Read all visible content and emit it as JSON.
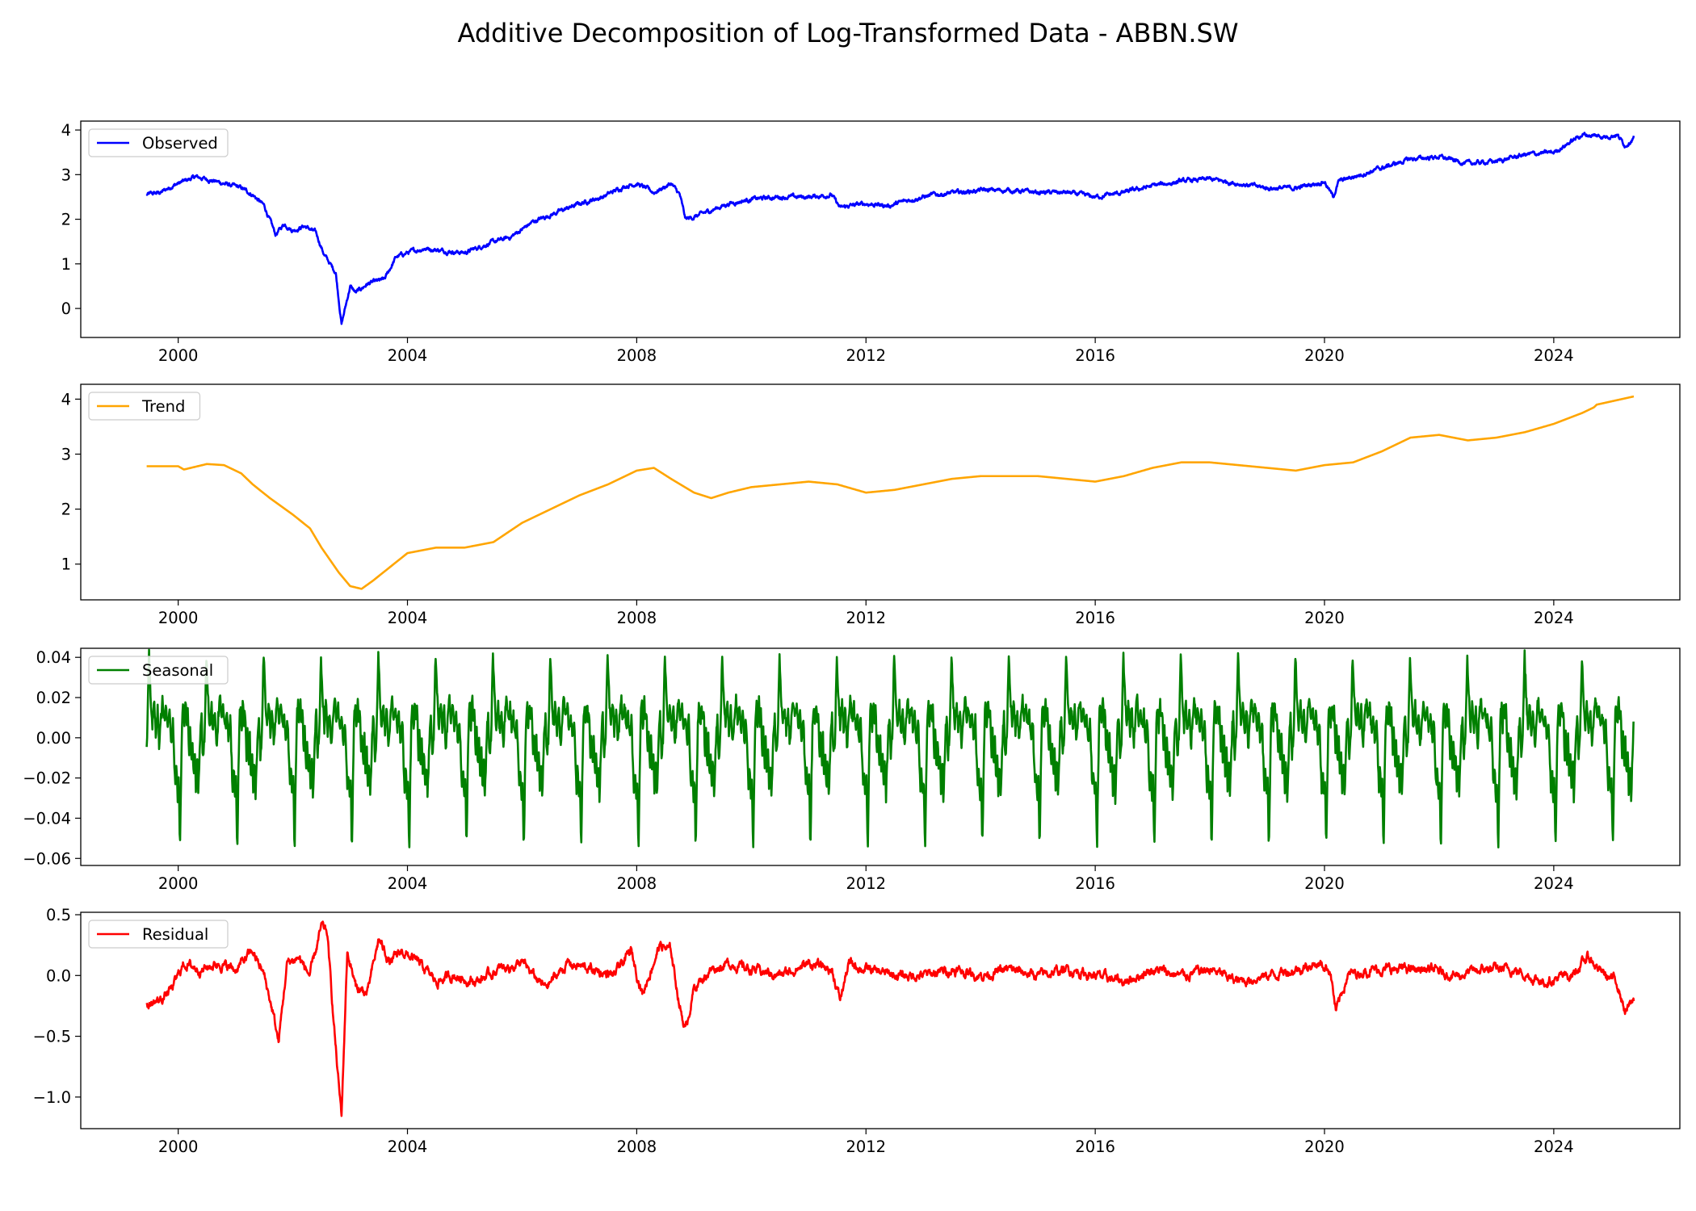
{
  "figure": {
    "title": "Additive Decomposition of Log-Transformed Data - ABBN.SW"
  },
  "chart_data": [
    {
      "type": "line",
      "name": "observed",
      "legend": "Observed",
      "color": "#0000ff",
      "legend_position": "upper-left",
      "xlim": [
        1998.3,
        2026.2
      ],
      "ylim": [
        -0.65,
        4.2
      ],
      "x_ticks": [
        2000,
        2004,
        2008,
        2012,
        2016,
        2020,
        2024
      ],
      "x_tick_labels": [
        "2000",
        "2004",
        "2008",
        "2012",
        "2016",
        "2020",
        "2024"
      ],
      "y_ticks": [
        0,
        1,
        2,
        3,
        4
      ],
      "y_tick_labels": [
        "0",
        "1",
        "2",
        "3",
        "4"
      ],
      "noise": 0.06,
      "x": [
        1999.45,
        1999.7,
        1999.9,
        2000.1,
        2000.3,
        2000.5,
        2000.8,
        2001.1,
        2001.3,
        2001.5,
        2001.7,
        2001.85,
        2002.0,
        2002.2,
        2002.4,
        2002.55,
        2002.75,
        2002.85,
        2003.0,
        2003.1,
        2003.3,
        2003.6,
        2003.8,
        2004.0,
        2004.3,
        2004.6,
        2005.0,
        2005.4,
        2005.8,
        2006.2,
        2006.6,
        2007.0,
        2007.4,
        2007.8,
        2008.0,
        2008.3,
        2008.6,
        2008.75,
        2008.85,
        2009.0,
        2009.3,
        2009.6,
        2010.0,
        2010.5,
        2011.0,
        2011.4,
        2011.55,
        2011.7,
        2012.0,
        2012.4,
        2012.8,
        2013.2,
        2013.6,
        2014.0,
        2014.5,
        2015.0,
        2015.5,
        2016.0,
        2016.5,
        2017.0,
        2017.5,
        2018.0,
        2018.5,
        2019.0,
        2019.5,
        2020.0,
        2020.15,
        2020.25,
        2020.5,
        2021.0,
        2021.5,
        2022.0,
        2022.5,
        2023.0,
        2023.5,
        2024.0,
        2024.5,
        2024.9,
        2025.1,
        2025.25,
        2025.4
      ],
      "y": [
        2.55,
        2.6,
        2.75,
        2.85,
        2.95,
        2.9,
        2.8,
        2.7,
        2.55,
        2.3,
        1.65,
        1.9,
        1.75,
        1.85,
        1.7,
        1.2,
        0.8,
        -0.35,
        0.5,
        0.35,
        0.55,
        0.65,
        1.15,
        1.25,
        1.35,
        1.3,
        1.25,
        1.45,
        1.6,
        1.95,
        2.15,
        2.35,
        2.5,
        2.75,
        2.8,
        2.6,
        2.8,
        2.55,
        2.0,
        2.05,
        2.2,
        2.35,
        2.45,
        2.5,
        2.5,
        2.55,
        2.25,
        2.3,
        2.35,
        2.3,
        2.45,
        2.55,
        2.6,
        2.65,
        2.65,
        2.6,
        2.6,
        2.5,
        2.6,
        2.75,
        2.85,
        2.9,
        2.8,
        2.7,
        2.7,
        2.85,
        2.5,
        2.85,
        2.95,
        3.15,
        3.35,
        3.4,
        3.25,
        3.3,
        3.45,
        3.5,
        3.9,
        3.85,
        3.9,
        3.65,
        3.85
      ]
    },
    {
      "type": "line",
      "name": "trend",
      "legend": "Trend",
      "color": "#ffa500",
      "legend_position": "upper-left",
      "xlim": [
        1998.3,
        2026.2
      ],
      "ylim": [
        0.35,
        4.27
      ],
      "x_ticks": [
        2000,
        2004,
        2008,
        2012,
        2016,
        2020,
        2024
      ],
      "x_tick_labels": [
        "2000",
        "2004",
        "2008",
        "2012",
        "2016",
        "2020",
        "2024"
      ],
      "y_ticks": [
        1,
        2,
        3,
        4
      ],
      "y_tick_labels": [
        "1",
        "2",
        "3",
        "4"
      ],
      "noise": 0,
      "x": [
        1999.45,
        1999.9,
        2000.0,
        2000.1,
        2000.5,
        2000.8,
        2001.1,
        2001.3,
        2001.6,
        2002.0,
        2002.3,
        2002.5,
        2002.8,
        2003.0,
        2003.2,
        2003.4,
        2003.7,
        2004.0,
        2004.5,
        2005.0,
        2005.5,
        2006.0,
        2006.5,
        2007.0,
        2007.5,
        2008.0,
        2008.3,
        2008.6,
        2009.0,
        2009.3,
        2009.6,
        2010.0,
        2010.5,
        2011.0,
        2011.5,
        2012.0,
        2012.5,
        2013.0,
        2013.5,
        2014.0,
        2014.5,
        2015.0,
        2015.5,
        2016.0,
        2016.5,
        2017.0,
        2017.5,
        2018.0,
        2018.5,
        2019.0,
        2019.5,
        2020.0,
        2020.5,
        2021.0,
        2021.5,
        2022.0,
        2022.5,
        2023.0,
        2023.5,
        2024.0,
        2024.5,
        2024.7,
        2024.75,
        2025.4
      ],
      "y": [
        2.78,
        2.78,
        2.78,
        2.72,
        2.82,
        2.8,
        2.65,
        2.45,
        2.2,
        1.9,
        1.65,
        1.3,
        0.85,
        0.6,
        0.55,
        0.7,
        0.95,
        1.2,
        1.3,
        1.3,
        1.4,
        1.75,
        2.0,
        2.25,
        2.45,
        2.7,
        2.75,
        2.55,
        2.3,
        2.2,
        2.3,
        2.4,
        2.45,
        2.5,
        2.45,
        2.3,
        2.35,
        2.45,
        2.55,
        2.6,
        2.6,
        2.6,
        2.55,
        2.5,
        2.6,
        2.75,
        2.85,
        2.85,
        2.8,
        2.75,
        2.7,
        2.8,
        2.85,
        3.05,
        3.3,
        3.35,
        3.25,
        3.3,
        3.4,
        3.55,
        3.75,
        3.85,
        3.9,
        4.05
      ]
    },
    {
      "type": "line",
      "name": "seasonal",
      "legend": "Seasonal",
      "color": "#008000",
      "legend_position": "upper-left",
      "xlim": [
        1998.3,
        2026.2
      ],
      "ylim": [
        -0.0635,
        0.0445
      ],
      "x_ticks": [
        2000,
        2004,
        2008,
        2012,
        2016,
        2020,
        2024
      ],
      "x_tick_labels": [
        "2000",
        "2004",
        "2008",
        "2012",
        "2016",
        "2020",
        "2024"
      ],
      "y_ticks": [
        -0.06,
        -0.04,
        -0.02,
        0.0,
        0.02,
        0.04
      ],
      "y_tick_labels": [
        "−0.06",
        "−0.04",
        "−0.02",
        "0.00",
        "0.02",
        "0.04"
      ],
      "period_years": 1,
      "start": 1999.45,
      "end": 2025.4,
      "cycle_phase": [
        0.0,
        0.03,
        0.06,
        0.09,
        0.12,
        0.15,
        0.18,
        0.21,
        0.24,
        0.27,
        0.3,
        0.33,
        0.36,
        0.39,
        0.42,
        0.45,
        0.48,
        0.5,
        0.52,
        0.54,
        0.56,
        0.58,
        0.6,
        0.62,
        0.64,
        0.66,
        0.68,
        0.7,
        0.72,
        0.74,
        0.76,
        0.78,
        0.8,
        0.82,
        0.84,
        0.86,
        0.88,
        0.9,
        0.92,
        0.94,
        0.96,
        0.98,
        1.0
      ],
      "cycle_values": [
        -0.01,
        0.0,
        0.042,
        0.02,
        0.005,
        0.018,
        0.002,
        0.015,
        -0.005,
        0.01,
        0.02,
        0.008,
        0.016,
        0.004,
        0.012,
        -0.002,
        0.01,
        -0.01,
        -0.025,
        -0.015,
        -0.03,
        -0.02,
        -0.058,
        -0.02,
        0.01,
        0.018,
        0.004,
        0.02,
        0.008,
        0.015,
        -0.01,
        0.005,
        -0.015,
        0.0,
        -0.02,
        -0.005,
        -0.028,
        -0.01,
        -0.03,
        -0.012,
        0.005,
        0.012,
        -0.01
      ]
    },
    {
      "type": "line",
      "name": "residual",
      "legend": "Residual",
      "color": "#ff0000",
      "legend_position": "upper-left",
      "xlim": [
        1998.3,
        2026.2
      ],
      "ylim": [
        -1.26,
        0.52
      ],
      "x_ticks": [
        2000,
        2004,
        2008,
        2012,
        2016,
        2020,
        2024
      ],
      "x_tick_labels": [
        "2000",
        "2004",
        "2008",
        "2012",
        "2016",
        "2020",
        "2024"
      ],
      "y_ticks": [
        -1.0,
        -0.5,
        0.0,
        0.5
      ],
      "y_tick_labels": [
        "−1.0",
        "−0.5",
        "0.0",
        "0.5"
      ],
      "noise": 0.05,
      "x": [
        1999.45,
        1999.7,
        1999.9,
        2000.1,
        2000.4,
        2000.7,
        2001.0,
        2001.3,
        2001.5,
        2001.65,
        2001.75,
        2001.9,
        2002.1,
        2002.3,
        2002.5,
        2002.6,
        2002.7,
        2002.8,
        2002.85,
        2002.95,
        2003.1,
        2003.3,
        2003.5,
        2003.7,
        2003.9,
        2004.2,
        2004.5,
        2004.8,
        2005.2,
        2005.6,
        2006.0,
        2006.4,
        2006.8,
        2007.2,
        2007.6,
        2007.9,
        2008.1,
        2008.4,
        2008.6,
        2008.75,
        2008.85,
        2009.0,
        2009.3,
        2009.6,
        2010.0,
        2010.5,
        2011.0,
        2011.4,
        2011.55,
        2011.7,
        2012.0,
        2012.5,
        2013.0,
        2013.5,
        2014.0,
        2014.5,
        2015.0,
        2015.5,
        2016.0,
        2016.5,
        2017.0,
        2017.5,
        2018.0,
        2018.5,
        2019.0,
        2019.5,
        2019.9,
        2020.1,
        2020.2,
        2020.4,
        2020.8,
        2021.3,
        2021.8,
        2022.3,
        2022.8,
        2023.3,
        2023.8,
        2024.3,
        2024.6,
        2024.9,
        2025.1,
        2025.25,
        2025.4
      ],
      "y": [
        -0.25,
        -0.2,
        -0.1,
        0.1,
        0.05,
        0.1,
        0.05,
        0.2,
        0.0,
        -0.3,
        -0.55,
        0.1,
        0.15,
        0.0,
        0.4,
        0.35,
        -0.3,
        -0.9,
        -1.15,
        0.2,
        -0.1,
        -0.15,
        0.3,
        0.1,
        0.2,
        0.1,
        -0.05,
        0.0,
        -0.05,
        0.05,
        0.1,
        -0.1,
        0.1,
        0.05,
        0.0,
        0.2,
        -0.15,
        0.25,
        0.2,
        -0.25,
        -0.45,
        -0.1,
        0.05,
        0.1,
        0.05,
        0.0,
        0.1,
        0.05,
        -0.2,
        0.1,
        0.05,
        0.0,
        0.0,
        0.05,
        0.0,
        0.05,
        0.0,
        0.05,
        0.0,
        -0.05,
        0.05,
        0.0,
        0.05,
        -0.05,
        0.0,
        0.05,
        0.1,
        0.05,
        -0.3,
        0.0,
        0.05,
        0.05,
        0.05,
        0.0,
        0.05,
        0.05,
        -0.05,
        0.0,
        0.15,
        0.0,
        -0.05,
        -0.3,
        -0.2
      ]
    }
  ]
}
